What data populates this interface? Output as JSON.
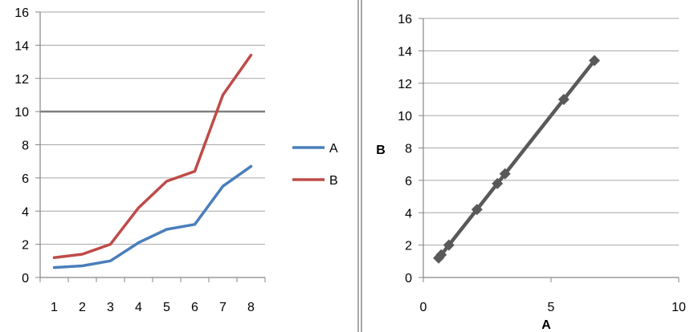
{
  "chart_data": [
    {
      "type": "line",
      "x": [
        1,
        2,
        3,
        4,
        5,
        6,
        7,
        8
      ],
      "categories": [
        "1",
        "2",
        "3",
        "4",
        "5",
        "6",
        "7",
        "8"
      ],
      "series": [
        {
          "name": "A",
          "color": "#4a7ebb",
          "values": [
            0.6,
            0.7,
            1.0,
            2.1,
            2.9,
            3.2,
            5.5,
            6.7
          ]
        },
        {
          "name": "B",
          "color": "#be4b48",
          "values": [
            1.2,
            1.4,
            2.0,
            4.2,
            5.8,
            6.4,
            11.0,
            13.4
          ]
        }
      ],
      "ylim": [
        0,
        16
      ],
      "yticks": [
        "0",
        "2",
        "4",
        "6",
        "8",
        "10",
        "12",
        "14",
        "16"
      ],
      "grid": "horizontal",
      "legend": "right"
    },
    {
      "type": "scatter",
      "xlabel": "A",
      "ylabel": "B",
      "xlim": [
        0,
        10
      ],
      "ylim": [
        0,
        16
      ],
      "xticks": [
        "0",
        "5",
        "10"
      ],
      "yticks": [
        "0",
        "2",
        "4",
        "6",
        "8",
        "10",
        "12",
        "14",
        "16"
      ],
      "grid": "horizontal",
      "color": "#595959",
      "points": [
        {
          "x": 0.6,
          "y": 1.2
        },
        {
          "x": 0.7,
          "y": 1.4
        },
        {
          "x": 1.0,
          "y": 2.0
        },
        {
          "x": 2.1,
          "y": 4.2
        },
        {
          "x": 2.9,
          "y": 5.8
        },
        {
          "x": 3.2,
          "y": 6.4
        },
        {
          "x": 5.5,
          "y": 11.0
        },
        {
          "x": 6.7,
          "y": 13.4
        }
      ]
    }
  ]
}
